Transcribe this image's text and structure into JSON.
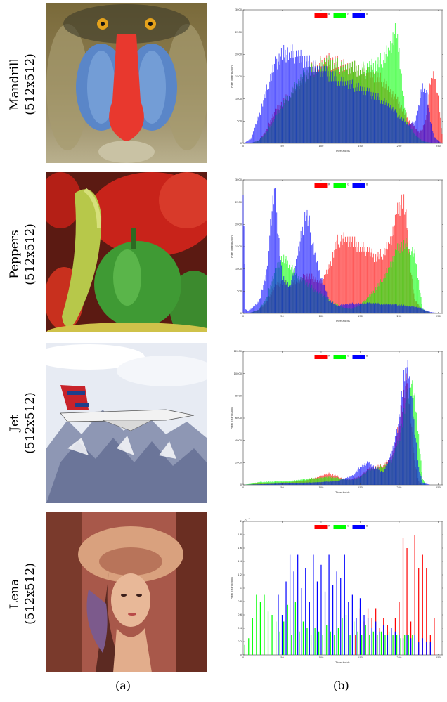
{
  "rows": [
    {
      "name": "Mandrill",
      "size": "(512x512)"
    },
    {
      "name": "Peppers",
      "size": "(512x512)"
    },
    {
      "name": "Jet",
      "size": "(512x512)"
    },
    {
      "name": "Lena",
      "size": "(512x512)"
    }
  ],
  "captions": {
    "a": "(a)",
    "b": "(b)"
  },
  "colors": {
    "R": "#ff0000",
    "G": "#00ff00",
    "B": "#0000ff"
  },
  "chart_data": [
    {
      "type": "area",
      "title": "",
      "xlabel": "Thresholds",
      "ylabel": "Pixel distribution",
      "xlim": [
        0,
        255
      ],
      "ylim": [
        0,
        3000
      ],
      "xticks": [
        0,
        50,
        100,
        150,
        200,
        250
      ],
      "yticks": [
        0,
        500,
        1000,
        1500,
        2000,
        2500,
        3000
      ],
      "legend_position": "top-center",
      "series": [
        {
          "name": "R",
          "x": [
            0,
            10,
            20,
            30,
            40,
            50,
            60,
            70,
            80,
            90,
            100,
            110,
            120,
            130,
            140,
            150,
            160,
            170,
            180,
            190,
            200,
            210,
            220,
            225,
            230,
            235,
            240,
            245,
            250,
            255
          ],
          "y": [
            0,
            10,
            60,
            300,
            700,
            900,
            1100,
            1300,
            1500,
            1700,
            1800,
            1850,
            1800,
            1750,
            1700,
            1650,
            1600,
            1500,
            1400,
            1150,
            900,
            600,
            350,
            250,
            300,
            650,
            1400,
            1600,
            1000,
            200
          ]
        },
        {
          "name": "G",
          "x": [
            0,
            10,
            20,
            30,
            40,
            50,
            60,
            70,
            80,
            90,
            100,
            110,
            120,
            130,
            140,
            150,
            160,
            170,
            180,
            190,
            195,
            200,
            205,
            210,
            220,
            230,
            240,
            255
          ],
          "y": [
            0,
            10,
            60,
            250,
            550,
            850,
            1100,
            1350,
            1550,
            1650,
            1750,
            1800,
            1750,
            1720,
            1700,
            1650,
            1700,
            1750,
            1900,
            2250,
            2500,
            2050,
            1100,
            500,
            200,
            50,
            20,
            0
          ]
        },
        {
          "name": "B",
          "x": [
            0,
            10,
            20,
            30,
            40,
            50,
            60,
            70,
            80,
            90,
            100,
            110,
            120,
            130,
            140,
            150,
            160,
            170,
            180,
            190,
            200,
            210,
            220,
            225,
            230,
            235,
            240,
            245,
            250,
            255
          ],
          "y": [
            0,
            100,
            600,
            1200,
            1750,
            2000,
            2050,
            1950,
            1850,
            1750,
            1650,
            1550,
            1450,
            1350,
            1300,
            1250,
            1150,
            1050,
            950,
            800,
            600,
            450,
            450,
            800,
            1300,
            1200,
            500,
            150,
            60,
            0
          ]
        }
      ]
    },
    {
      "type": "area",
      "title": "",
      "xlabel": "Thresholds",
      "ylabel": "Pixel distribution",
      "xlim": [
        0,
        255
      ],
      "ylim": [
        0,
        3000
      ],
      "xticks": [
        0,
        50,
        100,
        150,
        200,
        250
      ],
      "yticks": [
        0,
        500,
        1000,
        1500,
        2000,
        2500,
        3000
      ],
      "legend_position": "top-center",
      "series": [
        {
          "name": "R",
          "x": [
            0,
            10,
            20,
            30,
            40,
            50,
            60,
            70,
            80,
            90,
            100,
            110,
            120,
            130,
            140,
            150,
            160,
            170,
            180,
            190,
            200,
            205,
            210,
            215,
            220,
            230,
            240,
            255
          ],
          "y": [
            0,
            20,
            80,
            250,
            600,
            700,
            650,
            700,
            850,
            800,
            700,
            1000,
            1600,
            1700,
            1600,
            1500,
            1400,
            1250,
            1350,
            1700,
            2400,
            2600,
            2000,
            1000,
            300,
            80,
            20,
            0
          ]
        },
        {
          "name": "G",
          "x": [
            0,
            10,
            20,
            30,
            40,
            50,
            60,
            70,
            80,
            90,
            100,
            110,
            120,
            130,
            140,
            150,
            160,
            170,
            180,
            190,
            200,
            210,
            220,
            225,
            230,
            240,
            255
          ],
          "y": [
            0,
            20,
            80,
            350,
            900,
            1250,
            1100,
            800,
            700,
            550,
            450,
            300,
            200,
            120,
            100,
            200,
            350,
            550,
            800,
            1150,
            1500,
            1550,
            1300,
            700,
            100,
            20,
            0
          ]
        },
        {
          "name": "B",
          "x": [
            0,
            3,
            6,
            10,
            20,
            30,
            35,
            40,
            45,
            50,
            60,
            70,
            80,
            85,
            90,
            100,
            110,
            120,
            130,
            140,
            150,
            160,
            170,
            180,
            190,
            200,
            210,
            220,
            230,
            240,
            255
          ],
          "y": [
            2950,
            100,
            50,
            100,
            250,
            900,
            2000,
            2750,
            1800,
            800,
            600,
            1300,
            2250,
            2000,
            1500,
            800,
            300,
            180,
            200,
            220,
            220,
            230,
            220,
            210,
            200,
            190,
            170,
            150,
            100,
            30,
            0
          ]
        }
      ]
    },
    {
      "type": "area",
      "title": "",
      "xlabel": "Thresholds",
      "ylabel": "Pixel distribution",
      "xlim": [
        0,
        255
      ],
      "ylim": [
        0,
        12000
      ],
      "xticks": [
        0,
        50,
        100,
        150,
        200,
        250
      ],
      "yticks": [
        0,
        2000,
        4000,
        6000,
        8000,
        10000,
        12000
      ],
      "legend_position": "top-center",
      "series": [
        {
          "name": "R",
          "x": [
            0,
            10,
            20,
            40,
            60,
            80,
            90,
            100,
            110,
            120,
            130,
            140,
            150,
            160,
            170,
            180,
            190,
            195,
            200,
            205,
            210,
            215,
            220,
            225,
            230,
            240,
            255
          ],
          "y": [
            0,
            50,
            150,
            200,
            250,
            400,
            600,
            800,
            1000,
            800,
            500,
            500,
            800,
            1400,
            1600,
            1800,
            2500,
            3500,
            5500,
            7500,
            9500,
            6000,
            2000,
            300,
            0,
            0,
            0
          ]
        },
        {
          "name": "G",
          "x": [
            0,
            10,
            20,
            40,
            60,
            80,
            90,
            100,
            110,
            120,
            130,
            140,
            150,
            160,
            170,
            180,
            190,
            200,
            205,
            210,
            215,
            220,
            225,
            230,
            235,
            240,
            255
          ],
          "y": [
            0,
            100,
            250,
            300,
            350,
            500,
            600,
            650,
            700,
            650,
            500,
            450,
            700,
            1300,
            1500,
            1700,
            2200,
            4000,
            6000,
            8000,
            9500,
            7500,
            4300,
            500,
            0,
            0,
            0
          ]
        },
        {
          "name": "B",
          "x": [
            0,
            10,
            20,
            40,
            60,
            80,
            100,
            120,
            140,
            150,
            160,
            170,
            180,
            190,
            195,
            200,
            205,
            210,
            212,
            215,
            220,
            225,
            230,
            240,
            255
          ],
          "y": [
            0,
            30,
            50,
            100,
            150,
            200,
            250,
            350,
            800,
            1600,
            2000,
            1500,
            1200,
            2800,
            4000,
            6000,
            9000,
            10800,
            10400,
            8500,
            5000,
            1500,
            200,
            0,
            0
          ]
        }
      ]
    },
    {
      "type": "bar",
      "title": "",
      "xlabel": "Thresholds",
      "ylabel": "Pixel distribution",
      "axis_multiplier": "10^-3",
      "xlim": [
        0,
        255
      ],
      "ylim": [
        0,
        2
      ],
      "xticks": [
        0,
        50,
        100,
        150,
        200,
        250
      ],
      "yticks": [
        0,
        0.2,
        0.4,
        0.6,
        0.8,
        1,
        1.2,
        1.4,
        1.6,
        1.8,
        2
      ],
      "legend_position": "top-center",
      "series": [
        {
          "name": "R",
          "x": [
            144,
            150,
            155,
            160,
            165,
            170,
            175,
            180,
            185,
            190,
            195,
            200,
            205,
            210,
            215,
            220,
            225,
            230,
            235,
            240,
            245
          ],
          "y": [
            0.3,
            0.7,
            0.5,
            0.7,
            0.55,
            0.7,
            0.4,
            0.55,
            0.45,
            0.4,
            0.55,
            0.8,
            1.75,
            1.6,
            0.5,
            1.8,
            1.3,
            1.5,
            1.3,
            0.3,
            0.55
          ]
        },
        {
          "name": "G",
          "x": [
            2,
            7,
            12,
            17,
            22,
            27,
            32,
            37,
            42,
            47,
            52,
            57,
            62,
            67,
            72,
            77,
            82,
            87,
            92,
            97,
            102,
            107,
            112,
            117,
            122,
            127,
            132,
            137,
            142,
            147,
            152,
            157,
            162,
            167,
            172,
            177,
            182,
            187,
            192,
            197,
            202,
            207,
            212,
            217
          ],
          "y": [
            0.15,
            0.25,
            0.55,
            0.9,
            0.8,
            0.9,
            0.65,
            0.6,
            0.5,
            0.35,
            0.5,
            0.75,
            0.3,
            0.8,
            0.35,
            0.5,
            0.4,
            0.3,
            0.4,
            0.35,
            0.3,
            0.45,
            0.35,
            0.3,
            0.4,
            0.55,
            0.6,
            0.3,
            0.5,
            0.35,
            0.3,
            0.45,
            0.3,
            0.35,
            0.3,
            0.35,
            0.3,
            0.35,
            0.3,
            0.3,
            0.25,
            0.3,
            0.3,
            0.3
          ]
        },
        {
          "name": "B",
          "x": [
            45,
            50,
            55,
            60,
            65,
            70,
            75,
            80,
            85,
            90,
            95,
            100,
            105,
            110,
            115,
            120,
            125,
            130,
            135,
            140,
            145,
            150,
            155,
            160,
            165,
            170,
            175,
            180,
            185,
            190,
            195,
            200,
            205,
            210,
            215,
            220,
            225,
            230,
            235,
            240
          ],
          "y": [
            0.9,
            0.6,
            1.1,
            1.5,
            1.25,
            1.5,
            1.0,
            1.3,
            0.8,
            1.5,
            1.1,
            1.35,
            0.95,
            1.5,
            1.05,
            1.25,
            1.15,
            1.5,
            0.8,
            0.9,
            0.55,
            0.85,
            0.6,
            0.55,
            0.4,
            0.5,
            0.35,
            0.45,
            0.3,
            0.4,
            0.35,
            0.3,
            0.25,
            0.3,
            0.25,
            0.3,
            0.2,
            0.25,
            0.2,
            0.2
          ]
        }
      ]
    }
  ]
}
